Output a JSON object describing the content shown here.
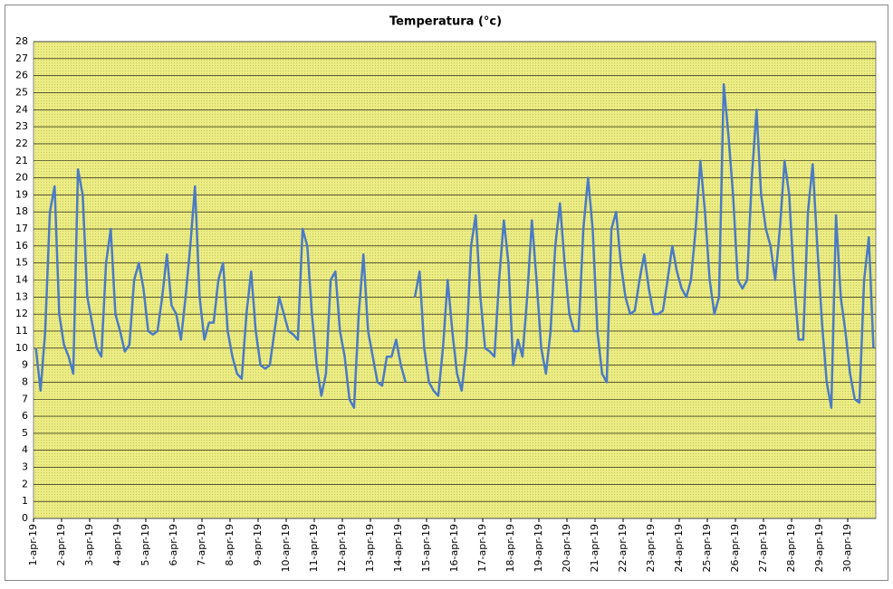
{
  "chart_data": {
    "type": "line",
    "title": "Temperatura (°c)",
    "categories": [
      "1-apr-19",
      null,
      null,
      null,
      null,
      null,
      "2-apr-19",
      null,
      null,
      null,
      null,
      null,
      "3-apr-19",
      null,
      null,
      null,
      null,
      null,
      "4-apr-19",
      null,
      null,
      null,
      null,
      null,
      "5-apr-19",
      null,
      null,
      null,
      null,
      null,
      "6-apr-19",
      null,
      null,
      null,
      null,
      null,
      "7-apr-19",
      null,
      null,
      null,
      null,
      null,
      "8-apr-19",
      null,
      null,
      null,
      null,
      null,
      "9-apr-19",
      null,
      null,
      null,
      null,
      null,
      "10-apr-19",
      null,
      null,
      null,
      null,
      null,
      "11-apr-19",
      null,
      null,
      null,
      null,
      null,
      "12-apr-19",
      null,
      null,
      null,
      null,
      null,
      "13-apr-19",
      null,
      null,
      null,
      null,
      null,
      "14-apr-19",
      null,
      null,
      null,
      null,
      null,
      "15-apr-19",
      null,
      null,
      null,
      null,
      null,
      "16-apr-19",
      null,
      null,
      null,
      null,
      null,
      "17-apr-19",
      null,
      null,
      null,
      null,
      null,
      "18-apr-19",
      null,
      null,
      null,
      null,
      null,
      "19-apr-19",
      null,
      null,
      null,
      null,
      null,
      "20-apr-19",
      null,
      null,
      null,
      null,
      null,
      "21-apr-19",
      null,
      null,
      null,
      null,
      null,
      "22-apr-19",
      null,
      null,
      null,
      null,
      null,
      "23-apr-19",
      null,
      null,
      null,
      null,
      null,
      "24-apr-19",
      null,
      null,
      null,
      null,
      null,
      "25-apr-19",
      null,
      null,
      null,
      null,
      null,
      "26-apr-19",
      null,
      null,
      null,
      null,
      null,
      "27-apr-19",
      null,
      null,
      null,
      null,
      null,
      "28-apr-19",
      null,
      null,
      null,
      null,
      null,
      "29-apr-19",
      null,
      null,
      null,
      null,
      null,
      "30-apr-19",
      null,
      null,
      null,
      null,
      null
    ],
    "series": [
      {
        "color": "#4a7bc4",
        "values": [
          10,
          7.5,
          11,
          18,
          19.5,
          12,
          10.2,
          9.5,
          8.5,
          20.5,
          19,
          13,
          11.5,
          10,
          9.5,
          15,
          17,
          12,
          11,
          9.8,
          10.2,
          14,
          15,
          13.5,
          11,
          10.8,
          11,
          13,
          15.5,
          12.5,
          12,
          10.5,
          13,
          16,
          19.5,
          13,
          10.5,
          11.5,
          11.5,
          14,
          15,
          11,
          9.5,
          8.5,
          8.2,
          12,
          14.5,
          11,
          9,
          8.8,
          9,
          11,
          13,
          12,
          11,
          10.8,
          10.5,
          17,
          16,
          12,
          9,
          7.2,
          8.5,
          14,
          14.5,
          11,
          9.5,
          7,
          6.5,
          12,
          15.5,
          11,
          9.5,
          8,
          7.8,
          9.5,
          9.5,
          10.5,
          9,
          8,
          null,
          13,
          14.5,
          10,
          8,
          7.5,
          7.2,
          10,
          14,
          11,
          8.5,
          7.5,
          10,
          16,
          17.8,
          13,
          10,
          9.8,
          9.5,
          14,
          17.5,
          15,
          9,
          10.5,
          9.5,
          13,
          17.5,
          14,
          10,
          8.5,
          11,
          16,
          18.5,
          15,
          12,
          11,
          11,
          17,
          20,
          17,
          11,
          8.5,
          8,
          17,
          18,
          15,
          13,
          12,
          12.2,
          14,
          15.5,
          13.5,
          12,
          12,
          12.2,
          14,
          16,
          14.5,
          13.5,
          13,
          14,
          17,
          21,
          18,
          14,
          12,
          13,
          25.5,
          22.5,
          19,
          14,
          13.5,
          14,
          20,
          24,
          19,
          17,
          16,
          14,
          17,
          21,
          19,
          14,
          10.5,
          10.5,
          18,
          20.8,
          16,
          11.5,
          8,
          6.5,
          17.8,
          13,
          11,
          8.5,
          7,
          6.8,
          14,
          16.5,
          10
        ]
      }
    ],
    "ylim": [
      0,
      28
    ],
    "yticks": [
      0,
      1,
      2,
      3,
      4,
      5,
      6,
      7,
      8,
      9,
      10,
      11,
      12,
      13,
      14,
      15,
      16,
      17,
      18,
      19,
      20,
      21,
      22,
      23,
      24,
      25,
      26,
      27,
      28
    ],
    "grid": true
  }
}
